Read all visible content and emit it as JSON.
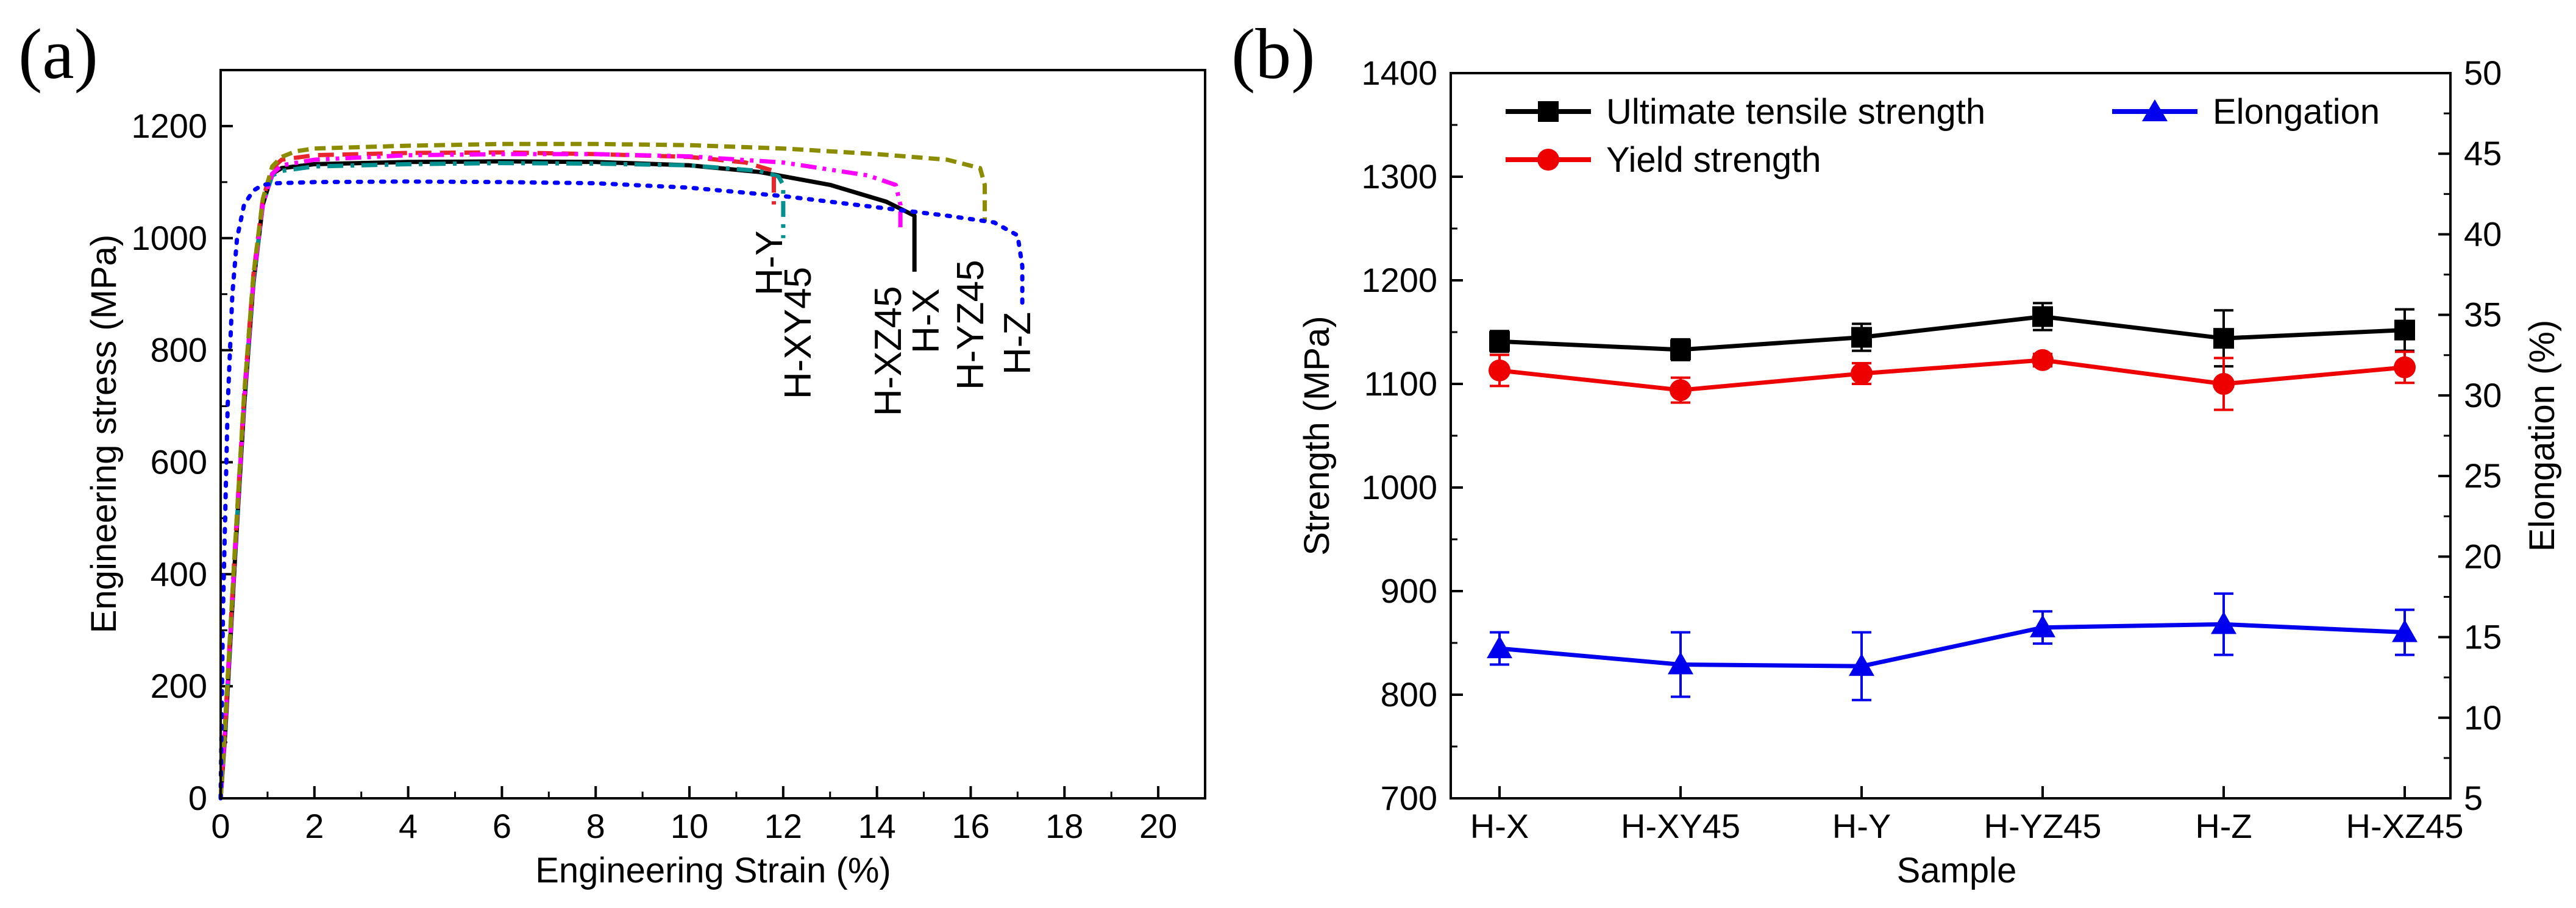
{
  "chart_data": [
    {
      "panel": "(a)",
      "type": "line",
      "xlabel": "Engineering Strain (%)",
      "ylabel": "Engineering stress (MPa)",
      "xlim": [
        0,
        21
      ],
      "ylim": [
        0,
        1300
      ],
      "xticks": [
        "0",
        "2",
        "4",
        "6",
        "8",
        "10",
        "12",
        "14",
        "16",
        "18",
        "20"
      ],
      "yticks": [
        "0",
        "200",
        "400",
        "600",
        "800",
        "1000",
        "1200"
      ],
      "grid": false,
      "series": [
        {
          "name": "H-X",
          "color": "#000000",
          "dash": "solid",
          "x": [
            0,
            0.1,
            0.3,
            0.5,
            0.7,
            0.9,
            1.1,
            1.3,
            2,
            4,
            6,
            8,
            10,
            11.5,
            13,
            14.2,
            14.8,
            14.8
          ],
          "y": [
            0,
            120,
            420,
            700,
            920,
            1060,
            1115,
            1125,
            1132,
            1136,
            1137,
            1136,
            1130,
            1118,
            1095,
            1065,
            1040,
            940
          ]
        },
        {
          "name": "H-XY45",
          "color": "#009090",
          "dash": "dashdot",
          "x": [
            0,
            0.1,
            0.3,
            0.5,
            0.7,
            0.9,
            1.1,
            1.3,
            2,
            4,
            6,
            8,
            10,
            11.5,
            11.9,
            12.0,
            12.0
          ],
          "y": [
            0,
            130,
            430,
            710,
            925,
            1060,
            1112,
            1120,
            1128,
            1132,
            1134,
            1133,
            1130,
            1120,
            1110,
            1095,
            1000
          ]
        },
        {
          "name": "H-Y",
          "color": "#e8262e",
          "dash": "dash",
          "x": [
            0,
            0.1,
            0.3,
            0.5,
            0.7,
            0.9,
            1.1,
            1.3,
            2,
            4,
            6,
            8,
            10,
            11.2,
            11.8,
            11.8
          ],
          "y": [
            0,
            140,
            440,
            720,
            935,
            1070,
            1125,
            1140,
            1148,
            1152,
            1153,
            1150,
            1145,
            1135,
            1120,
            1060
          ]
        },
        {
          "name": "H-XZ45",
          "color": "#ff00ff",
          "dash": "dashdotdot",
          "x": [
            0,
            0.1,
            0.3,
            0.5,
            0.7,
            0.9,
            1.1,
            1.3,
            2,
            4,
            6,
            8,
            10,
            12,
            13.8,
            14.4,
            14.5,
            14.5
          ],
          "y": [
            0,
            130,
            430,
            710,
            925,
            1060,
            1115,
            1130,
            1140,
            1148,
            1150,
            1150,
            1146,
            1135,
            1112,
            1095,
            1060,
            1010
          ]
        },
        {
          "name": "H-YZ45",
          "color": "#8c8c00",
          "dash": "shortdash",
          "x": [
            0,
            0.1,
            0.3,
            0.5,
            0.7,
            0.9,
            1.1,
            1.3,
            1.6,
            2,
            4,
            6,
            8,
            10,
            12,
            14,
            15.5,
            16.2,
            16.3,
            16.3
          ],
          "y": [
            0,
            140,
            440,
            720,
            935,
            1070,
            1128,
            1145,
            1155,
            1160,
            1165,
            1168,
            1168,
            1166,
            1160,
            1150,
            1140,
            1125,
            1095,
            1030
          ]
        },
        {
          "name": "H-Z",
          "color": "#0000ff",
          "dash": "dot",
          "x": [
            0,
            0.05,
            0.15,
            0.25,
            0.35,
            0.5,
            0.7,
            0.9,
            1.2,
            2,
            4,
            6,
            8,
            10,
            12,
            14,
            15.5,
            16.5,
            17.0,
            17.1,
            17.1
          ],
          "y": [
            0,
            330,
            700,
            900,
            1000,
            1060,
            1085,
            1095,
            1098,
            1100,
            1101,
            1100,
            1098,
            1090,
            1075,
            1055,
            1040,
            1028,
            1005,
            950,
            880
          ]
        }
      ],
      "annotations": [
        "H-Y",
        "H-XY45",
        "H-XZ45",
        "H-X",
        "H-YZ45",
        "H-Z"
      ]
    },
    {
      "panel": "(b)",
      "type": "line",
      "xlabel": "Sample",
      "ylabel": "Strength (MPa)",
      "y2label": "Elongation (%)",
      "categories": [
        "H-X",
        "H-XY45",
        "H-Y",
        "H-YZ45",
        "H-Z",
        "H-XZ45"
      ],
      "ylim": [
        700,
        1400
      ],
      "y2lim": [
        5,
        50
      ],
      "yticks": [
        "700",
        "800",
        "900",
        "1000",
        "1100",
        "1200",
        "1300",
        "1400"
      ],
      "y2ticks": [
        "5",
        "10",
        "15",
        "20",
        "25",
        "30",
        "35",
        "40",
        "45",
        "50"
      ],
      "legend_position": "top",
      "series": [
        {
          "name": "Ultimate tensile strength",
          "axis": "left",
          "color": "#000000",
          "marker": "square",
          "values": [
            1141,
            1133,
            1145,
            1165,
            1144,
            1152
          ],
          "errors": [
            10,
            10,
            13,
            13,
            27,
            20
          ]
        },
        {
          "name": "Yield strength",
          "axis": "left",
          "color": "#ee0000",
          "marker": "circle",
          "values": [
            1113,
            1094,
            1110,
            1123,
            1100,
            1116
          ],
          "errors": [
            15,
            12,
            10,
            6,
            25,
            15
          ]
        },
        {
          "name": "Elongation",
          "axis": "right",
          "color": "#0000ee",
          "marker": "triangle",
          "values": [
            14.3,
            13.3,
            13.2,
            15.6,
            15.8,
            15.3
          ],
          "errors": [
            1.0,
            2.0,
            2.1,
            1.0,
            1.9,
            1.4
          ]
        }
      ]
    }
  ]
}
